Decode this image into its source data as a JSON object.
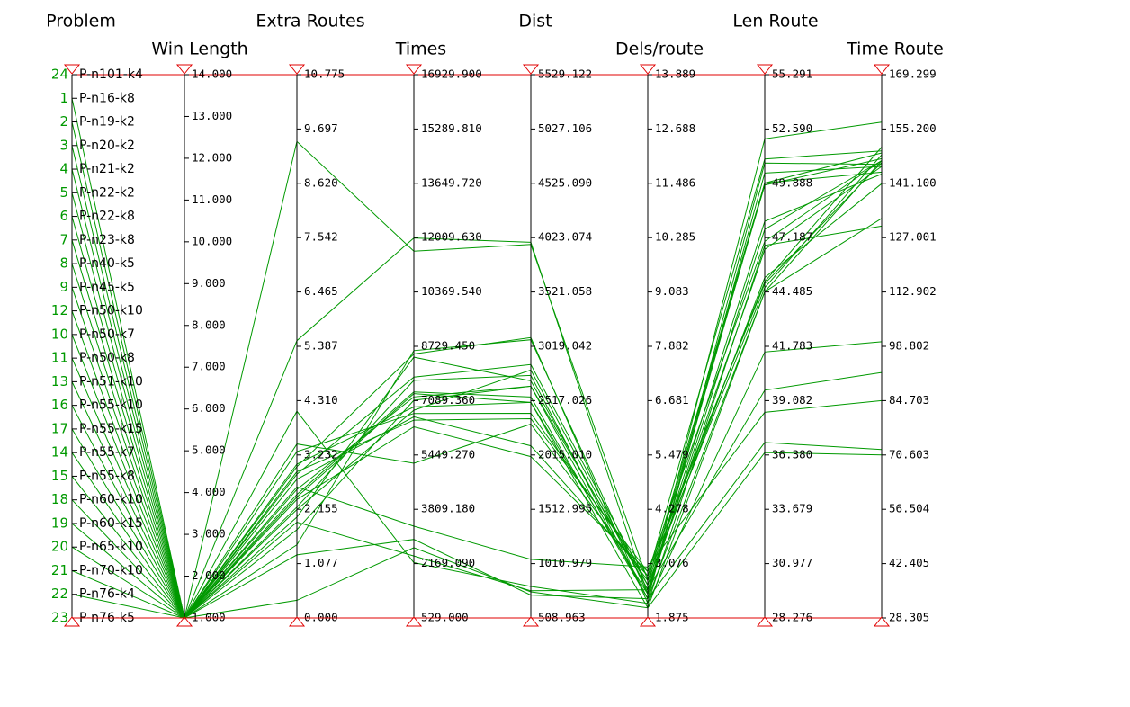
{
  "colors": {
    "line": "#009900",
    "highlight": "#e00000",
    "index": "#009900"
  },
  "chart_data": {
    "type": "parallel_coordinates",
    "axes": [
      {
        "name": "Problem",
        "kind": "categorical"
      },
      {
        "name": "Win Length",
        "kind": "numeric",
        "range": [
          1.0,
          14.0
        ],
        "ticks": [
          "1.000",
          "2.000",
          "3.000",
          "4.000",
          "5.000",
          "6.000",
          "7.000",
          "8.000",
          "9.000",
          "10.000",
          "11.000",
          "12.000",
          "13.000",
          "14.000"
        ]
      },
      {
        "name": "Extra Routes",
        "kind": "numeric",
        "range": [
          0.0,
          10.775
        ],
        "ticks": [
          "0.000",
          "1.077",
          "2.155",
          "3.232",
          "4.310",
          "5.387",
          "6.465",
          "7.542",
          "8.620",
          "9.697",
          "10.775"
        ]
      },
      {
        "name": "Times",
        "kind": "numeric",
        "range": [
          529.0,
          16929.9
        ],
        "ticks": [
          "529.000",
          "2169.090",
          "3809.180",
          "5449.270",
          "7089.360",
          "8729.450",
          "10369.540",
          "12009.630",
          "13649.720",
          "15289.810",
          "16929.900"
        ]
      },
      {
        "name": "Dist",
        "kind": "numeric",
        "range": [
          508.963,
          5529.122
        ],
        "ticks": [
          "508.963",
          "1010.979",
          "1512.995",
          "2015.010",
          "2517.026",
          "3019.042",
          "3521.058",
          "4023.074",
          "4525.090",
          "5027.106",
          "5529.122"
        ]
      },
      {
        "name": "Dels/route",
        "kind": "numeric",
        "range": [
          1.875,
          13.889
        ],
        "ticks": [
          "1.875",
          "3.076",
          "4.278",
          "5.479",
          "6.681",
          "7.882",
          "9.083",
          "10.285",
          "11.486",
          "12.688",
          "13.889"
        ]
      },
      {
        "name": "Len Route",
        "kind": "numeric",
        "range": [
          28.276,
          55.291
        ],
        "ticks": [
          "28.276",
          "30.977",
          "33.679",
          "36.380",
          "39.082",
          "41.783",
          "44.485",
          "47.187",
          "49.888",
          "52.590",
          "55.291"
        ]
      },
      {
        "name": "Time Route",
        "kind": "numeric",
        "range": [
          28.305,
          169.299
        ],
        "ticks": [
          "28.305",
          "42.405",
          "56.504",
          "70.603",
          "84.703",
          "98.802",
          "112.902",
          "127.001",
          "141.100",
          "155.200",
          "169.299"
        ]
      }
    ],
    "categories": [
      {
        "index": "24",
        "label": "P-n101-k4"
      },
      {
        "index": "1",
        "label": "P-n16-k8"
      },
      {
        "index": "2",
        "label": "P-n19-k2"
      },
      {
        "index": "3",
        "label": "P-n20-k2"
      },
      {
        "index": "4",
        "label": "P-n21-k2"
      },
      {
        "index": "5",
        "label": "P-n22-k2"
      },
      {
        "index": "6",
        "label": "P-n22-k8"
      },
      {
        "index": "7",
        "label": "P-n23-k8"
      },
      {
        "index": "8",
        "label": "P-n40-k5"
      },
      {
        "index": "9",
        "label": "P-n45-k5"
      },
      {
        "index": "12",
        "label": "P-n50-k10"
      },
      {
        "index": "10",
        "label": "P-n50-k7"
      },
      {
        "index": "11",
        "label": "P-n50-k8"
      },
      {
        "index": "13",
        "label": "P-n51-k10"
      },
      {
        "index": "16",
        "label": "P-n55-k10"
      },
      {
        "index": "17",
        "label": "P-n55-k15"
      },
      {
        "index": "14",
        "label": "P-n55-k7"
      },
      {
        "index": "15",
        "label": "P-n55-k8"
      },
      {
        "index": "18",
        "label": "P-n60-k10"
      },
      {
        "index": "19",
        "label": "P-n60-k15"
      },
      {
        "index": "20",
        "label": "P-n65-k10"
      },
      {
        "index": "21",
        "label": "P-n70-k10"
      },
      {
        "index": "22",
        "label": "P-n76-k4"
      },
      {
        "index": "23",
        "label": "P-n76-k5"
      }
    ],
    "records": [
      {
        "problem": 0,
        "values": [
          14.0,
          10.775,
          16929.9,
          5529.122,
          13.889,
          55.291,
          169.299
        ],
        "highlight": true
      },
      {
        "problem": 1,
        "values": [
          1.0,
          0.35,
          2650,
          750,
          2.1,
          36.5,
          70.6
        ]
      },
      {
        "problem": 2,
        "values": [
          1.0,
          1.25,
          2900,
          720,
          2.3,
          37.0,
          72.0
        ]
      },
      {
        "problem": 3,
        "values": [
          1.0,
          1.9,
          2400,
          760,
          2.5,
          39.6,
          92.0
        ]
      },
      {
        "problem": 4,
        "values": [
          1.0,
          2.6,
          3300,
          1050,
          3.0,
          38.5,
          84.7
        ]
      },
      {
        "problem": 5,
        "values": [
          1.0,
          4.1,
          2200,
          800,
          2.2,
          41.5,
          100.0
        ]
      },
      {
        "problem": 6,
        "values": [
          1.0,
          2.85,
          7800,
          2850,
          2.6,
          45.2,
          141.0
        ]
      },
      {
        "problem": 7,
        "values": [
          1.0,
          2.9,
          6500,
          2350,
          2.9,
          47.0,
          147.0
        ]
      },
      {
        "problem": 8,
        "values": [
          1.0,
          9.45,
          11600,
          3960,
          2.7,
          49.9,
          144.0
        ]
      },
      {
        "problem": 9,
        "values": [
          1.0,
          5.5,
          12000,
          3980,
          2.4,
          49.9,
          149.0
        ]
      },
      {
        "problem": 10,
        "values": [
          1.0,
          3.3,
          6700,
          2400,
          2.8,
          51.1,
          149.5
        ]
      },
      {
        "problem": 11,
        "values": [
          1.0,
          1.75,
          7100,
          2650,
          2.6,
          49.8,
          147.5
        ]
      },
      {
        "problem": 12,
        "values": [
          1.0,
          2.55,
          7200,
          2650,
          2.3,
          50.4,
          145.5
        ]
      },
      {
        "problem": 13,
        "values": [
          1.0,
          2.2,
          7700,
          2750,
          2.3,
          50.9,
          146.0
        ]
      },
      {
        "problem": 14,
        "values": [
          1.0,
          3.05,
          6900,
          2500,
          2.4,
          52.1,
          157.0
        ]
      },
      {
        "problem": 15,
        "values": [
          1.0,
          1.45,
          8600,
          3080,
          2.4,
          47.6,
          147.0
        ]
      },
      {
        "problem": 16,
        "values": [
          1.0,
          2.0,
          8400,
          2700,
          2.5,
          46.6,
          145.5
        ]
      },
      {
        "problem": 17,
        "values": [
          1.0,
          2.15,
          6800,
          2800,
          2.5,
          48.0,
          143.5
        ]
      },
      {
        "problem": 18,
        "values": [
          1.0,
          3.45,
          5200,
          2300,
          2.7,
          44.7,
          148.5
        ]
      },
      {
        "problem": 19,
        "values": [
          1.0,
          2.75,
          6600,
          2100,
          2.8,
          45.0,
          150.5
        ]
      },
      {
        "problem": 20,
        "values": [
          1.0,
          2.35,
          6300,
          2000,
          2.9,
          44.9,
          146.5
        ]
      },
      {
        "problem": 21,
        "values": [
          1.0,
          2.4,
          7300,
          2500,
          2.1,
          44.5,
          132.0
        ]
      },
      {
        "problem": 22,
        "values": [
          1.0,
          3.0,
          8500,
          3100,
          2.2,
          46.8,
          130.0
        ]
      },
      {
        "problem": 23,
        "values": [
          1.0,
          2.45,
          7350,
          2550,
          2.3,
          44.5,
          147.0
        ]
      }
    ]
  }
}
